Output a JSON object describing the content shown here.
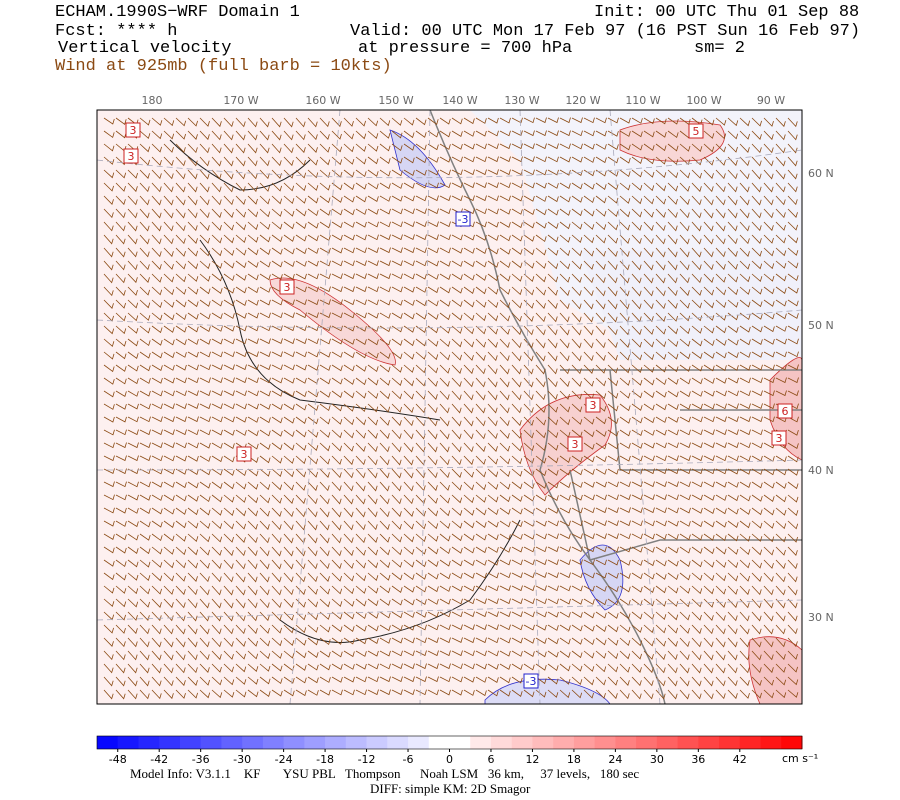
{
  "header": {
    "title": "ECHAM.1990S−WRF Domain 1",
    "init": "Init: 00 UTC Thu 01 Sep 88",
    "fcst": "Fcst: **** h",
    "valid": "Valid: 00 UTC Mon 17 Feb 97 (16 PST Sun 16 Feb 97)",
    "field": "Vertical velocity",
    "pressure": "at pressure =  700 hPa",
    "smooth": "sm= 2",
    "wind": "Wind at 925mb (full barb = 10kts)"
  },
  "map": {
    "longitudes": [
      "180",
      "170 W",
      "160 W",
      "150 W",
      "140 W",
      "130 W",
      "120 W",
      "110 W",
      "100 W",
      "90 W"
    ],
    "latitudes": [
      "60 N",
      "50 N",
      "40 N",
      "30 N"
    ],
    "contour_labels": [
      "3",
      "3",
      "3",
      "3",
      "3",
      "3",
      "5",
      "6",
      "3",
      "-3",
      "-3"
    ]
  },
  "colorbar": {
    "ticks": [
      -48,
      -42,
      -36,
      -30,
      -24,
      -18,
      -12,
      -6,
      0,
      6,
      12,
      18,
      24,
      30,
      36,
      42
    ],
    "units": "cm s⁻¹"
  },
  "footer": {
    "model": "Model Info: V3.1.1    KF       YSU PBL   Thompson      Noah LSM   36 km,     37 levels,   180 sec",
    "diff": "DIFF: simple KM: 2D Smagor"
  }
}
